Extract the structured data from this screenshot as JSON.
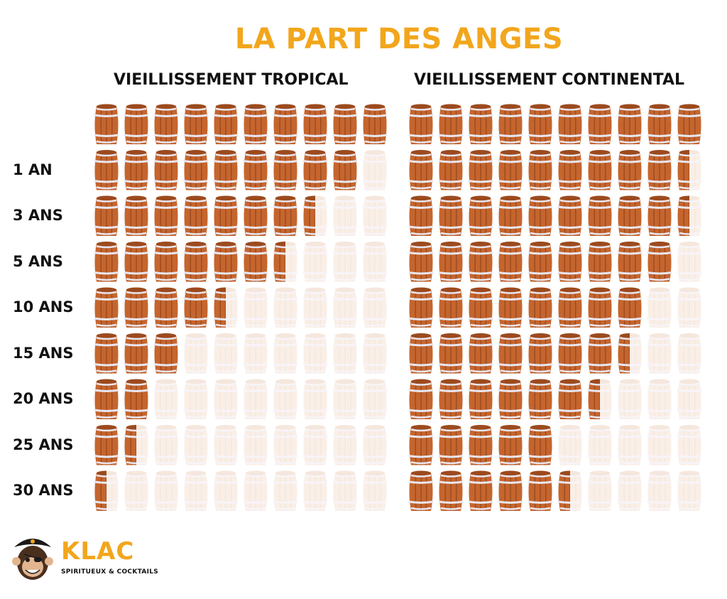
{
  "title": "LA PART DES ANGES",
  "colors": {
    "accent": "#F2A61C",
    "barrel_wood": "#C5652E",
    "barrel_wood_dark": "#9C4A1E",
    "barrel_hoop": "#E8E6F0",
    "barrel_empty": "#F3DCCB",
    "text": "#111111"
  },
  "chart_data": {
    "type": "pictogram",
    "title": "LA PART DES ANGES",
    "unit": "barrels remaining (out of 10)",
    "max_barrels": 10,
    "row_labels": [
      "",
      "1 AN",
      "3 ANS",
      "5 ANS",
      "10 ANS",
      "15 ANS",
      "20 ANS",
      "25 ANS",
      "30 ANS"
    ],
    "series": [
      {
        "name": "VIEILLISSEMENT TROPICAL",
        "values": [
          10,
          9,
          7.5,
          6.5,
          4.5,
          3,
          2,
          1.5,
          0.5
        ]
      },
      {
        "name": "VIEILLISSEMENT CONTINENTAL",
        "values": [
          10,
          9.5,
          9.5,
          9,
          8,
          7.5,
          6.5,
          5,
          5.5
        ]
      }
    ]
  },
  "logo": {
    "icon": "pirate-monkey-icon",
    "name": "KLAC",
    "tagline": "SPIRITUEUX & COCKTAILS"
  }
}
